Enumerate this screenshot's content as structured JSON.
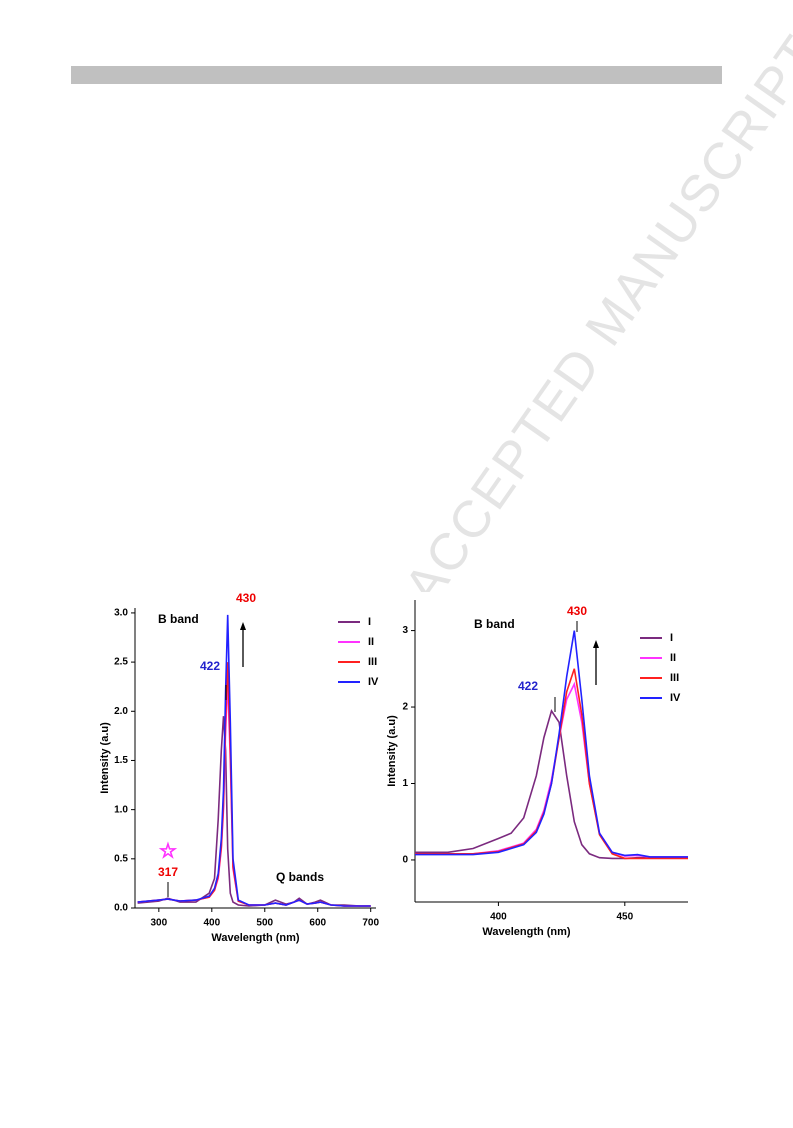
{
  "watermark": "ACCEPTED MANUSCRIPT",
  "chart_data": [
    {
      "type": "line",
      "xlabel": "Wavelength (nm)",
      "ylabel": "Intensity (a.u)",
      "annotations": [
        "B band",
        "430",
        "422",
        "317",
        "Q bands"
      ],
      "xlim": [
        255,
        710
      ],
      "xticks": [
        300,
        400,
        500,
        600,
        700
      ],
      "ylim": [
        0,
        3.05
      ],
      "yticks": [
        {
          "value": 0,
          "label": "0.0"
        },
        0.5,
        {
          "value": 1,
          "label": "1.0"
        },
        1.5,
        {
          "value": 2,
          "label": "2.0"
        },
        2.5,
        {
          "value": 3,
          "label": "3.0"
        }
      ],
      "x": [
        260,
        300,
        317,
        340,
        370,
        395,
        405,
        412,
        418,
        422,
        426,
        430,
        435,
        440,
        450,
        470,
        500,
        520,
        540,
        555,
        565,
        580,
        595,
        605,
        625,
        650,
        680,
        700
      ],
      "series": [
        {
          "name": "I",
          "color": "#7b2a7f",
          "values": [
            0.05,
            0.07,
            0.1,
            0.06,
            0.06,
            0.15,
            0.3,
            0.9,
            1.6,
            1.95,
            1.6,
            0.6,
            0.15,
            0.06,
            0.03,
            0.02,
            0.03,
            0.08,
            0.04,
            0.06,
            0.1,
            0.04,
            0.06,
            0.08,
            0.03,
            0.03,
            0.02,
            0.02
          ]
        },
        {
          "name": "II",
          "color": "#ff33ff",
          "values": [
            0.06,
            0.08,
            0.09,
            0.07,
            0.08,
            0.11,
            0.18,
            0.3,
            0.6,
            1.0,
            1.8,
            2.3,
            1.5,
            0.4,
            0.07,
            0.03,
            0.03,
            0.05,
            0.03,
            0.06,
            0.08,
            0.04,
            0.05,
            0.06,
            0.03,
            0.02,
            0.02,
            0.02
          ]
        },
        {
          "name": "III",
          "color": "#ff2020",
          "values": [
            0.06,
            0.08,
            0.09,
            0.07,
            0.08,
            0.11,
            0.18,
            0.32,
            0.62,
            1.05,
            1.9,
            2.5,
            1.6,
            0.42,
            0.07,
            0.03,
            0.03,
            0.05,
            0.03,
            0.06,
            0.08,
            0.04,
            0.05,
            0.06,
            0.03,
            0.02,
            0.02,
            0.02
          ]
        },
        {
          "name": "IV",
          "color": "#2222ff",
          "values": [
            0.06,
            0.08,
            0.09,
            0.07,
            0.08,
            0.12,
            0.2,
            0.35,
            0.7,
            1.2,
            2.2,
            2.98,
            1.9,
            0.5,
            0.08,
            0.03,
            0.03,
            0.05,
            0.03,
            0.06,
            0.08,
            0.04,
            0.05,
            0.06,
            0.03,
            0.02,
            0.02,
            0.02
          ]
        }
      ]
    },
    {
      "type": "line",
      "xlabel": "Wavelength (nm)",
      "ylabel": "Intensity (a.u)",
      "annotations": [
        "B band",
        "430",
        "422"
      ],
      "xlim": [
        367,
        475
      ],
      "xticks": [
        400,
        450
      ],
      "ylim": [
        -0.55,
        3.4
      ],
      "yticks": [
        0,
        1,
        2,
        3
      ],
      "x": [
        365,
        380,
        390,
        400,
        405,
        410,
        415,
        418,
        421,
        424,
        427,
        430,
        433,
        436,
        440,
        445,
        450,
        455,
        460,
        475
      ],
      "series": [
        {
          "name": "I",
          "color": "#7b2a7f",
          "values": [
            0.1,
            0.1,
            0.15,
            0.28,
            0.35,
            0.55,
            1.1,
            1.6,
            1.95,
            1.8,
            1.1,
            0.5,
            0.2,
            0.08,
            0.03,
            0.02,
            0.02,
            0.03,
            0.03,
            0.03
          ]
        },
        {
          "name": "II",
          "color": "#ff33ff",
          "values": [
            0.08,
            0.08,
            0.08,
            0.12,
            0.17,
            0.22,
            0.4,
            0.65,
            1.05,
            1.6,
            2.1,
            2.3,
            1.8,
            1.0,
            0.35,
            0.1,
            0.05,
            0.06,
            0.04,
            0.04
          ]
        },
        {
          "name": "III",
          "color": "#ff2020",
          "values": [
            0.08,
            0.08,
            0.08,
            0.11,
            0.16,
            0.21,
            0.38,
            0.62,
            1.0,
            1.6,
            2.2,
            2.5,
            1.9,
            1.0,
            0.33,
            0.08,
            0.02,
            0.02,
            0.02,
            0.02
          ]
        },
        {
          "name": "IV",
          "color": "#2222ff",
          "values": [
            0.07,
            0.07,
            0.07,
            0.1,
            0.15,
            0.2,
            0.36,
            0.6,
            1.0,
            1.65,
            2.4,
            3.0,
            2.1,
            1.1,
            0.35,
            0.1,
            0.06,
            0.07,
            0.04,
            0.04
          ]
        }
      ]
    }
  ]
}
